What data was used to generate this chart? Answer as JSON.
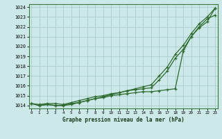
{
  "xlabel": "Graphe pression niveau de la mer (hPa)",
  "background_color": "#cce8e8",
  "grid_color": "#aacccc",
  "line_color": "#2d6a2d",
  "x": [
    0,
    1,
    2,
    3,
    4,
    5,
    6,
    7,
    8,
    9,
    10,
    11,
    12,
    13,
    14,
    15,
    16,
    17,
    18,
    19,
    20,
    21,
    22,
    23
  ],
  "line1": [
    1014.2,
    1014.1,
    1014.2,
    1014.2,
    1014.1,
    1014.3,
    1014.5,
    1014.7,
    1014.9,
    1015.0,
    1015.2,
    1015.3,
    1015.5,
    1015.6,
    1015.7,
    1015.8,
    1016.6,
    1017.5,
    1018.8,
    1019.7,
    1021.0,
    1022.0,
    1022.8,
    1023.2
  ],
  "line2": [
    1014.2,
    1014.0,
    1014.1,
    1014.0,
    1014.0,
    1014.2,
    1014.3,
    1014.5,
    1014.7,
    1014.8,
    1015.0,
    1015.1,
    1015.2,
    1015.3,
    1015.4,
    1015.4,
    1015.5,
    1015.6,
    1015.7,
    1019.5,
    1021.0,
    1021.9,
    1022.5,
    1023.9
  ],
  "line3": [
    1014.2,
    1014.0,
    1014.1,
    1014.0,
    1014.0,
    1014.1,
    1014.3,
    1014.5,
    1014.7,
    1014.9,
    1015.1,
    1015.3,
    1015.5,
    1015.7,
    1015.9,
    1016.1,
    1017.0,
    1017.9,
    1019.2,
    1020.1,
    1021.3,
    1022.3,
    1023.0,
    1023.9
  ],
  "ylim_min": 1013.7,
  "ylim_max": 1024.3,
  "yticks": [
    1014,
    1015,
    1016,
    1017,
    1018,
    1019,
    1020,
    1021,
    1022,
    1023,
    1024
  ],
  "xticks": [
    0,
    1,
    2,
    3,
    4,
    5,
    6,
    7,
    8,
    9,
    10,
    11,
    12,
    13,
    14,
    15,
    16,
    17,
    18,
    19,
    20,
    21,
    22,
    23
  ]
}
